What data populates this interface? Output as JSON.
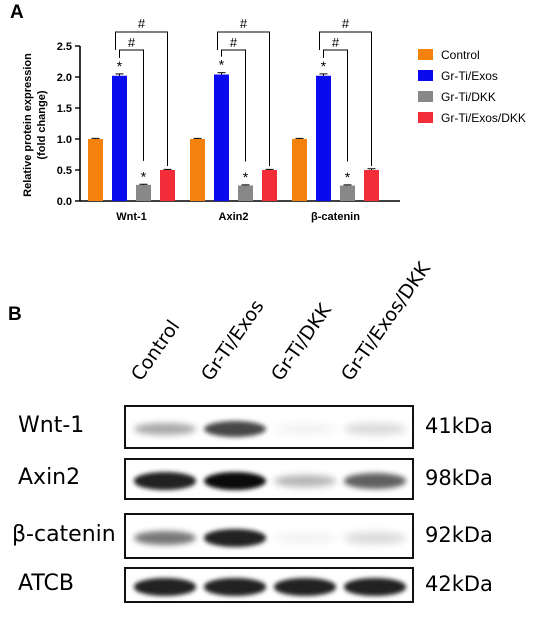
{
  "panel_a_label": "A",
  "panel_b_label": "B",
  "chart_data": {
    "type": "bar",
    "categories": [
      "Wnt-1",
      "Axin2",
      "β-catenin"
    ],
    "series": [
      {
        "name": "Control",
        "color": "#f5820f",
        "values": [
          1.0,
          1.0,
          1.0
        ],
        "errors": [
          0.01,
          0.01,
          0.01
        ]
      },
      {
        "name": "Gr-Ti/Exos",
        "color": "#0a0aee",
        "values": [
          2.02,
          2.04,
          2.02
        ],
        "errors": [
          0.03,
          0.03,
          0.03
        ]
      },
      {
        "name": "Gr-Ti/DKK",
        "color": "#888888",
        "values": [
          0.26,
          0.25,
          0.25
        ],
        "errors": [
          0.01,
          0.01,
          0.01
        ]
      },
      {
        "name": "Gr-Ti/Exos/DKK",
        "color": "#f22d3a",
        "values": [
          0.5,
          0.5,
          0.5
        ],
        "errors": [
          0.01,
          0.01,
          0.02
        ]
      }
    ],
    "ylabel": "Relative protein expression\n(fold change)",
    "ylim": [
      0,
      2.5
    ],
    "yticks": [
      "0.0",
      "0.5",
      "1.0",
      "1.5",
      "2.0",
      "2.5"
    ],
    "star_marker": "*",
    "hash_marker": "#",
    "legend_position": "right"
  },
  "blot": {
    "lanes": [
      "Control",
      "Gr-Ti/Exos",
      "Gr-Ti/DKK",
      "Gr-Ti/Exos/DKK"
    ],
    "rows": [
      {
        "protein": "Wnt-1",
        "kda": "41kDa",
        "intensity": [
          0.35,
          0.75,
          0.05,
          0.15
        ]
      },
      {
        "protein": "Axin2",
        "kda": "98kDa",
        "intensity": [
          0.9,
          1.0,
          0.3,
          0.65
        ]
      },
      {
        "protein": "β-catenin",
        "kda": "92kDa",
        "intensity": [
          0.55,
          0.9,
          0.05,
          0.15
        ]
      },
      {
        "protein": "ATCB",
        "kda": "42kDa",
        "intensity": [
          0.9,
          0.9,
          0.9,
          0.9
        ]
      }
    ]
  }
}
